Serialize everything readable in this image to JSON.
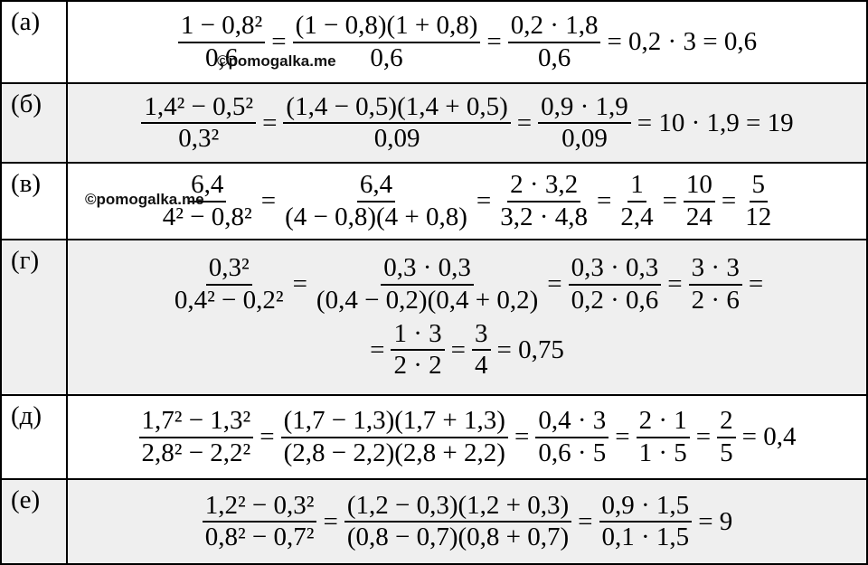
{
  "rows": [
    {
      "label": "(а)",
      "watermark": "©pomogalka.me",
      "lines": [
        [
          {
            "num": "1 − 0,8²",
            "den": "0,6"
          },
          {
            "text": "="
          },
          {
            "num": "(1 − 0,8)(1 + 0,8)",
            "den": "0,6"
          },
          {
            "text": "="
          },
          {
            "num": "0,2 · 1,8",
            "den": "0,6"
          },
          {
            "text": "= 0,2 · 3 = 0,6"
          }
        ]
      ]
    },
    {
      "label": "(б)",
      "lines": [
        [
          {
            "num": "1,4² − 0,5²",
            "den": "0,3²"
          },
          {
            "text": "="
          },
          {
            "num": "(1,4 − 0,5)(1,4 + 0,5)",
            "den": "0,09"
          },
          {
            "text": "="
          },
          {
            "num": "0,9 · 1,9",
            "den": "0,09"
          },
          {
            "text": "= 10 · 1,9 = 19"
          }
        ]
      ]
    },
    {
      "label": "(в)",
      "watermark": "©pomogalka.me",
      "lines": [
        [
          {
            "num": "6,4",
            "den": "4² − 0,8²"
          },
          {
            "text": "="
          },
          {
            "num": "6,4",
            "den": "(4 − 0,8)(4 + 0,8)"
          },
          {
            "text": "="
          },
          {
            "num": "2 · 3,2",
            "den": "3,2 · 4,8"
          },
          {
            "text": "="
          },
          {
            "num": "1",
            "den": "2,4"
          },
          {
            "text": "="
          },
          {
            "num": "10",
            "den": "24"
          },
          {
            "text": "="
          },
          {
            "num": "5",
            "den": "12"
          }
        ]
      ]
    },
    {
      "label": "(г)",
      "lines": [
        [
          {
            "num": "0,3²",
            "den": "0,4² − 0,2²"
          },
          {
            "text": "="
          },
          {
            "num": "0,3 · 0,3",
            "den": "(0,4 − 0,2)(0,4 + 0,2)"
          },
          {
            "text": "="
          },
          {
            "num": "0,3 · 0,3",
            "den": "0,2 · 0,6"
          },
          {
            "text": "="
          },
          {
            "num": "3 · 3",
            "den": "2 · 6"
          },
          {
            "text": "="
          }
        ],
        [
          {
            "text": "="
          },
          {
            "num": "1 · 3",
            "den": "2 · 2"
          },
          {
            "text": "="
          },
          {
            "num": "3",
            "den": "4"
          },
          {
            "text": "= 0,75"
          }
        ]
      ]
    },
    {
      "label": "(д)",
      "lines": [
        [
          {
            "num": "1,7² − 1,3²",
            "den": "2,8² − 2,2²"
          },
          {
            "text": "="
          },
          {
            "num": "(1,7 − 1,3)(1,7 + 1,3)",
            "den": "(2,8 − 2,2)(2,8 + 2,2)"
          },
          {
            "text": "="
          },
          {
            "num": "0,4 · 3",
            "den": "0,6 · 5"
          },
          {
            "text": "="
          },
          {
            "num": "2 · 1",
            "den": "1 · 5"
          },
          {
            "text": "="
          },
          {
            "num": "2",
            "den": "5"
          },
          {
            "text": "= 0,4"
          }
        ]
      ]
    },
    {
      "label": "(е)",
      "lines": [
        [
          {
            "num": "1,2² − 0,3²",
            "den": "0,8² − 0,7²"
          },
          {
            "text": "="
          },
          {
            "num": "(1,2 − 0,3)(1,2 + 0,3)",
            "den": "(0,8 − 0,7)(0,8 + 0,7)"
          },
          {
            "text": "="
          },
          {
            "num": "0,9 · 1,5",
            "den": "0,1 · 1,5"
          },
          {
            "text": "= 9"
          }
        ]
      ]
    }
  ]
}
